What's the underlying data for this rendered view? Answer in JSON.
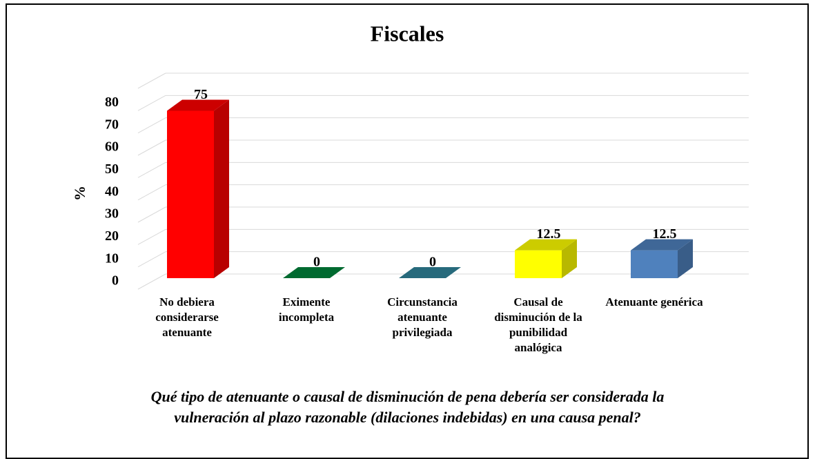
{
  "chart_data": {
    "type": "bar3d",
    "title": "Fiscales",
    "ylabel": "%",
    "categories": [
      "No debiera considerarse atenuante",
      "Eximente incompleta",
      "Circunstancia atenuante privilegiada",
      "Causal de disminución de la punibilidad analógica",
      "Atenuante genérica"
    ],
    "values": [
      75,
      0,
      0,
      12.5,
      12.5
    ],
    "colors": [
      "#ff0000",
      "#00843c",
      "#31849b",
      "#ffff00",
      "#4f81bd"
    ],
    "ylim": [
      0,
      90
    ],
    "yticks": [
      0,
      10,
      20,
      30,
      40,
      50,
      60,
      70,
      80
    ],
    "grid": true,
    "caption": [
      "Qué tipo de atenuante o causal de disminución de pena debería ser considerada la",
      "vulneración al plazo razonable (dilaciones indebidas) en una causa penal?"
    ]
  }
}
